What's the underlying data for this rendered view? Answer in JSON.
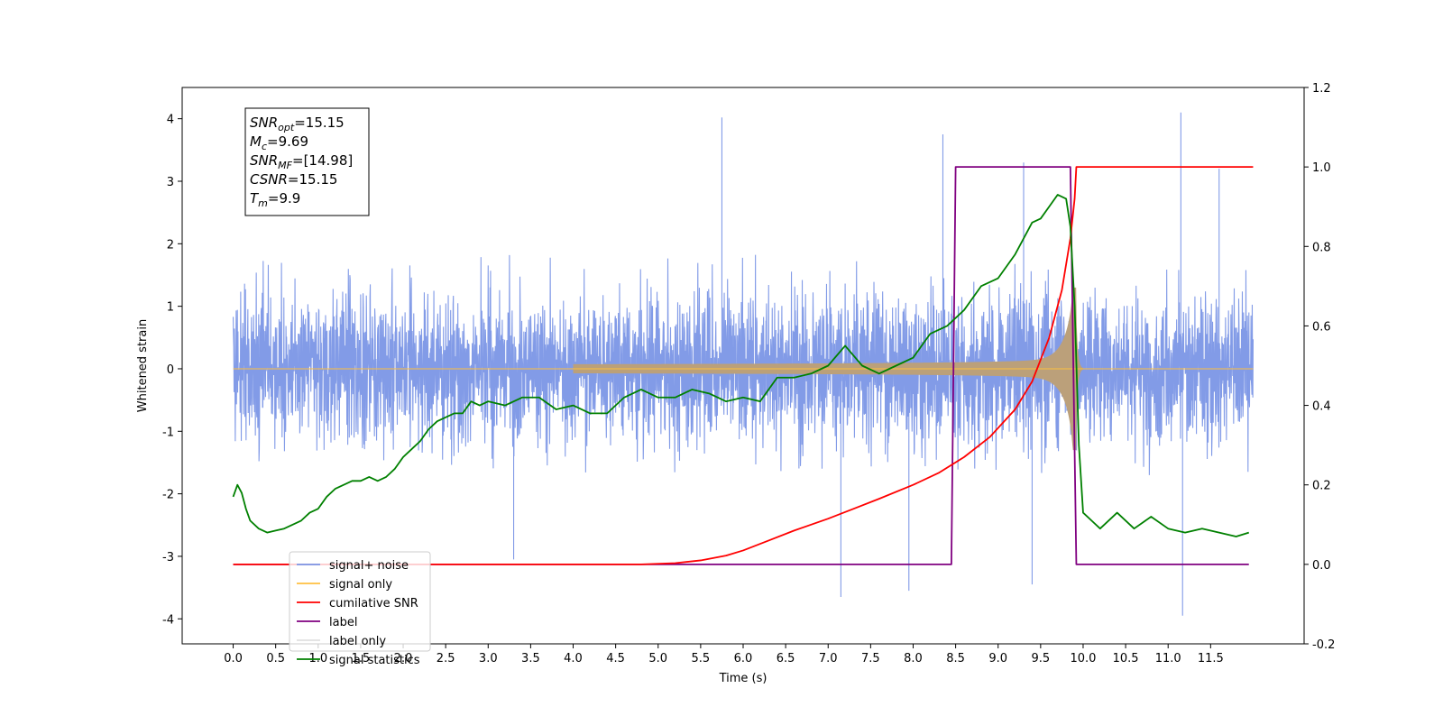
{
  "chart_data": {
    "type": "line",
    "xlabel": "Time (s)",
    "ylabel": "Whitened strain",
    "xlim": [
      -0.6,
      12.6
    ],
    "ylim": [
      -4.4,
      4.5
    ],
    "y2lim": [
      -0.2,
      1.2
    ],
    "x_ticks": [
      "0.0",
      "0.5",
      "1.0",
      "1.5",
      "2.0",
      "2.5",
      "3.0",
      "3.5",
      "4.0",
      "4.5",
      "5.0",
      "5.5",
      "6.0",
      "6.5",
      "7.0",
      "7.5",
      "8.0",
      "8.5",
      "9.0",
      "9.5",
      "10.0",
      "10.5",
      "11.0",
      "11.5"
    ],
    "y_ticks": [
      "-4",
      "-3",
      "-2",
      "-1",
      "0",
      "1",
      "2",
      "3",
      "4"
    ],
    "y2_ticks": [
      "-0.2",
      "0.0",
      "0.2",
      "0.4",
      "0.6",
      "0.8",
      "1.0",
      "1.2"
    ],
    "grid": false,
    "legend_position": "lower-left",
    "annotation": {
      "lines": [
        {
          "main": "SNR",
          "sub": "opt",
          "rest": "=15.15"
        },
        {
          "main": "M",
          "sub": "c",
          "rest": "=9.69"
        },
        {
          "main": "SNR",
          "sub": "MF",
          "rest": "=[14.98]"
        },
        {
          "main": "CSNR",
          "sub": "",
          "rest": "=15.15"
        },
        {
          "main": "T",
          "sub": "m",
          "rest": "=9.9"
        }
      ]
    },
    "series": [
      {
        "name": "signal+ noise",
        "axis": "left",
        "color": "#7b96e6",
        "kind": "noise-band",
        "x_range": [
          0.0,
          12.0
        ],
        "typical_amplitude": 1.9,
        "peaks": [
          {
            "x": 5.75,
            "y": 4.02
          },
          {
            "x": 11.15,
            "y": 4.1
          },
          {
            "x": 8.35,
            "y": 3.75
          },
          {
            "x": 9.3,
            "y": 3.3
          },
          {
            "x": 11.6,
            "y": 3.2
          },
          {
            "x": 11.17,
            "y": -3.95
          },
          {
            "x": 7.15,
            "y": -3.65
          },
          {
            "x": 7.95,
            "y": -3.55
          },
          {
            "x": 9.4,
            "y": -3.45
          },
          {
            "x": 3.3,
            "y": -3.05
          }
        ]
      },
      {
        "name": "signal only",
        "axis": "left",
        "color": "#ffbf40",
        "kind": "chirp",
        "merger_time": 9.9,
        "peak_amplitude": 1.3
      },
      {
        "name": "cumilative SNR",
        "axis": "right",
        "color": "#ff0000",
        "x": [
          0.0,
          4.8,
          5.2,
          5.5,
          5.8,
          6.0,
          6.3,
          6.6,
          7.0,
          7.3,
          7.6,
          8.0,
          8.3,
          8.6,
          8.9,
          9.2,
          9.4,
          9.6,
          9.75,
          9.85,
          9.9,
          9.92,
          12.0
        ],
        "y": [
          0.0,
          0.0,
          0.003,
          0.01,
          0.022,
          0.035,
          0.06,
          0.085,
          0.115,
          0.14,
          0.165,
          0.2,
          0.23,
          0.27,
          0.32,
          0.39,
          0.46,
          0.57,
          0.69,
          0.82,
          0.92,
          1.0,
          1.0
        ]
      },
      {
        "name": "label",
        "axis": "right",
        "color": "#800080",
        "x": [
          0.0,
          8.45,
          8.5,
          9.85,
          9.92,
          11.95
        ],
        "y": [
          0.0,
          0.0,
          1.0,
          1.0,
          0.0,
          0.0
        ]
      },
      {
        "name": "label only",
        "axis": "right",
        "color": "#c8c8c8",
        "x": [],
        "y": []
      },
      {
        "name": "signal statistics",
        "axis": "right",
        "color": "#008000",
        "x": [
          0.0,
          0.05,
          0.1,
          0.15,
          0.2,
          0.3,
          0.4,
          0.5,
          0.6,
          0.7,
          0.8,
          0.9,
          1.0,
          1.1,
          1.2,
          1.3,
          1.4,
          1.5,
          1.6,
          1.7,
          1.8,
          1.9,
          2.0,
          2.1,
          2.2,
          2.3,
          2.4,
          2.5,
          2.6,
          2.7,
          2.8,
          2.9,
          3.0,
          3.2,
          3.4,
          3.6,
          3.8,
          4.0,
          4.2,
          4.4,
          4.6,
          4.8,
          5.0,
          5.2,
          5.4,
          5.6,
          5.8,
          6.0,
          6.2,
          6.4,
          6.6,
          6.8,
          7.0,
          7.2,
          7.4,
          7.6,
          7.8,
          8.0,
          8.2,
          8.4,
          8.6,
          8.8,
          9.0,
          9.2,
          9.4,
          9.5,
          9.6,
          9.7,
          9.8,
          9.85,
          9.9,
          9.95,
          10.0,
          10.1,
          10.2,
          10.4,
          10.6,
          10.8,
          11.0,
          11.2,
          11.4,
          11.6,
          11.8,
          11.95
        ],
        "y": [
          0.17,
          0.2,
          0.18,
          0.14,
          0.11,
          0.09,
          0.08,
          0.085,
          0.09,
          0.1,
          0.11,
          0.13,
          0.14,
          0.17,
          0.19,
          0.2,
          0.21,
          0.21,
          0.22,
          0.21,
          0.22,
          0.24,
          0.27,
          0.29,
          0.31,
          0.34,
          0.36,
          0.37,
          0.38,
          0.38,
          0.41,
          0.4,
          0.41,
          0.4,
          0.42,
          0.42,
          0.39,
          0.4,
          0.38,
          0.38,
          0.42,
          0.44,
          0.42,
          0.42,
          0.44,
          0.43,
          0.41,
          0.42,
          0.41,
          0.47,
          0.47,
          0.48,
          0.5,
          0.55,
          0.5,
          0.48,
          0.5,
          0.52,
          0.58,
          0.6,
          0.64,
          0.7,
          0.72,
          0.78,
          0.86,
          0.87,
          0.9,
          0.93,
          0.92,
          0.85,
          0.65,
          0.3,
          0.13,
          0.11,
          0.09,
          0.13,
          0.09,
          0.12,
          0.09,
          0.08,
          0.09,
          0.08,
          0.07,
          0.08
        ]
      }
    ]
  }
}
